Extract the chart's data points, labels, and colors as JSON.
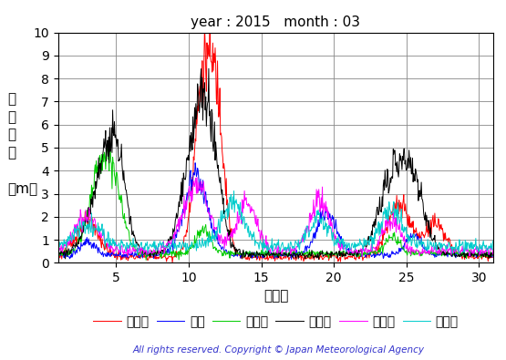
{
  "title": "year : 2015   month : 03",
  "xlabel": "（日）",
  "ylabels": [
    "有",
    "義",
    "波",
    "高",
    "",
    "（m）"
  ],
  "xlim": [
    1,
    31
  ],
  "ylim": [
    0,
    10
  ],
  "yticks": [
    0,
    1,
    2,
    3,
    4,
    5,
    6,
    7,
    8,
    9,
    10
  ],
  "xticks": [
    5,
    10,
    15,
    20,
    25,
    30
  ],
  "legend_labels": [
    "上ノ国",
    "唐桑",
    "石廂崎",
    "経ヶ岖",
    "生月島",
    "屋久島"
  ],
  "legend_colors": [
    "#ff0000",
    "#0000ff",
    "#00cc00",
    "#000000",
    "#ff00ff",
    "#00cccc"
  ],
  "line_width": 0.7,
  "copyright": "All rights reserved. Copyright © Japan Meteorological Agency",
  "bg_color": "#ffffff",
  "grid_color": "#888888",
  "title_fontsize": 11,
  "tick_fontsize": 10,
  "xlabel_fontsize": 11,
  "ylabel_fontsize": 11,
  "legend_fontsize": 10,
  "copyright_fontsize": 7.5
}
